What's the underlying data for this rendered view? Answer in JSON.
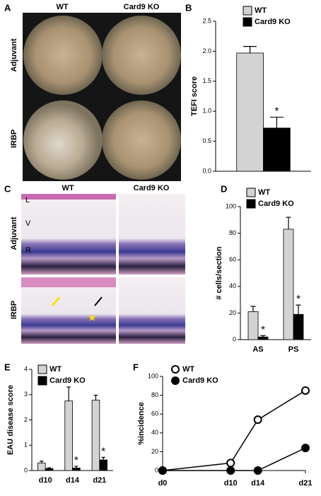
{
  "images": [
    {
      "panel": "A",
      "columns": [
        "WT",
        "Card9 KO"
      ],
      "rows": [
        "Adjuvant",
        "IRBP"
      ]
    },
    {
      "panel": "C",
      "columns": [
        "WT",
        "Card9 KO"
      ],
      "rows": [
        "Adjuvant",
        "IRBP"
      ],
      "layer_labels": [
        "L",
        "V",
        "R"
      ]
    }
  ],
  "chart_data": [
    {
      "type": "bar",
      "panel": "B",
      "ylabel": "TEFI score",
      "categories": [
        null
      ],
      "legend": "top",
      "series": [
        {
          "name": "WT",
          "color": "#d3d3d3",
          "values": [
            1.97
          ],
          "errors": [
            0.11
          ],
          "markers": [
            null
          ]
        },
        {
          "name": "Card9 KO",
          "color": "#000000",
          "values": [
            0.72
          ],
          "errors": [
            0.18
          ],
          "markers": [
            "*"
          ]
        }
      ],
      "ylim": [
        0,
        2.5
      ],
      "yticks": [
        {
          "value": 0,
          "label": "0.0"
        },
        0.5,
        {
          "value": 1,
          "label": "1.0"
        },
        1.5,
        {
          "value": 2,
          "label": "2.0"
        },
        2.5
      ]
    },
    {
      "type": "bar",
      "panel": "D",
      "ylabel": "# cells/section",
      "categories": [
        "AS",
        "PS"
      ],
      "legend": "top",
      "series": [
        {
          "name": "WT",
          "color": "#d3d3d3",
          "values": [
            21,
            83
          ],
          "errors": [
            4,
            9
          ],
          "markers": [
            null,
            null
          ]
        },
        {
          "name": "Card9 KO",
          "color": "#000000",
          "values": [
            2,
            19
          ],
          "errors": [
            1,
            7
          ],
          "markers": [
            "*",
            "*"
          ]
        }
      ],
      "ylim": [
        0,
        100
      ],
      "yticks": [
        0,
        20,
        40,
        60,
        80,
        100
      ]
    },
    {
      "type": "bar",
      "panel": "E",
      "ylabel": "EAU disease score",
      "categories": [
        "d10",
        "d14",
        "d21"
      ],
      "legend": "top",
      "series": [
        {
          "name": "WT",
          "color": "#d3d3d3",
          "values": [
            0.3,
            2.75,
            2.78
          ],
          "errors": [
            0.07,
            0.55,
            0.2
          ],
          "markers": [
            null,
            null,
            null
          ]
        },
        {
          "name": "Card9 KO",
          "color": "#000000",
          "values": [
            0.08,
            0.1,
            0.42
          ],
          "errors": [
            0.03,
            0.07,
            0.1
          ],
          "markers": [
            null,
            "*",
            "*"
          ]
        }
      ],
      "ylim": [
        0,
        4
      ],
      "yticks": [
        0,
        1,
        2,
        3,
        4
      ]
    },
    {
      "type": "line",
      "panel": "F",
      "ylabel": "%incidence",
      "legend": "top",
      "x": [
        0,
        10,
        14,
        21
      ],
      "series": [
        {
          "name": "WT",
          "color": "#000000",
          "fill": "#ffffff",
          "values": [
            0,
            8,
            54,
            85
          ]
        },
        {
          "name": "Card9 KO",
          "color": "#000000",
          "fill": "#000000",
          "values": [
            0,
            0,
            0,
            24
          ]
        }
      ],
      "xlim": [
        0,
        21
      ],
      "xticks": [
        {
          "value": 0,
          "label": "d0"
        },
        {
          "value": 10,
          "label": "d10"
        },
        {
          "value": 14,
          "label": "d14"
        },
        {
          "value": 21,
          "label": "d21"
        }
      ],
      "ylim": [
        0,
        100
      ],
      "yticks": [
        0,
        20,
        40,
        60,
        80,
        100
      ]
    }
  ]
}
